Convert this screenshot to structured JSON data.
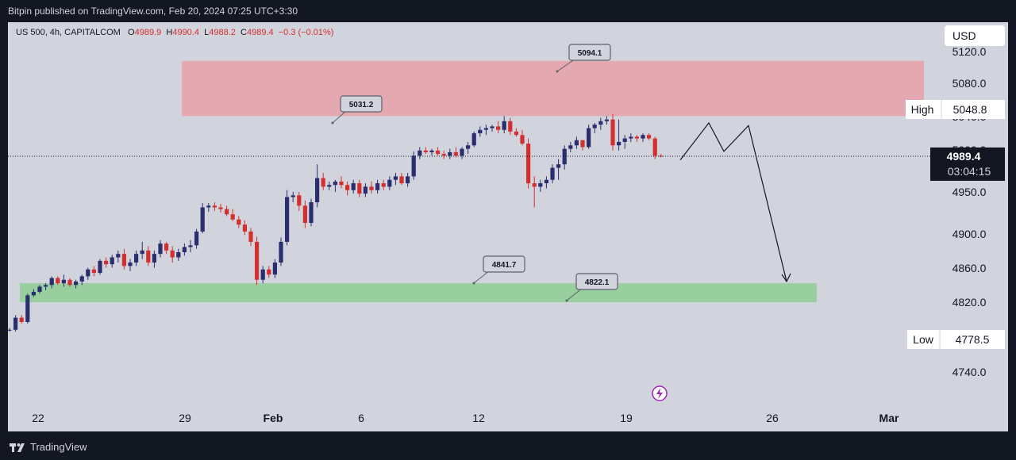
{
  "header": {
    "publisher_line": "Bitpin published on TradingView.com, Feb 20, 2024 07:25 UTC+3:30"
  },
  "legend": {
    "symbol": "US 500, 4h, CAPITALCOM",
    "open_label": "O",
    "open_value": "4989.9",
    "high_label": "H",
    "high_value": "4990.4",
    "low_label": "L",
    "low_value": "4988.2",
    "close_label": "C",
    "close_value": "4989.4",
    "change": "−0.3 (−0.01%)"
  },
  "currency_button": "USD",
  "footer": {
    "brand": "TradingView"
  },
  "colors": {
    "bull": "#2a2e6e",
    "bear": "#d32f2f",
    "resistance_zone": "#e8a0a8",
    "support_zone": "#8fcc94",
    "background": "#d1d4dc",
    "frame": "#131722"
  },
  "chart_data": {
    "type": "candlestick",
    "timeframe": "4h",
    "y_ticks": [
      "5120.0",
      "5080.0",
      "5040.0",
      "5000.0",
      "4950.0",
      "4900.0",
      "4860.0",
      "4820.0",
      "4740.0"
    ],
    "x_ticks": [
      "22",
      "29",
      "Feb",
      "6",
      "12",
      "19",
      "26",
      "Mar"
    ],
    "last_price": "4989.4",
    "countdown": "03:04:15",
    "high_tag": {
      "label": "High",
      "value": "5048.8"
    },
    "low_tag": {
      "label": "Low",
      "value": "4778.5"
    },
    "resistance_zone": [
      5036,
      5100
    ],
    "support_zone": [
      4820,
      4842
    ],
    "callouts": [
      "5094.1",
      "5031.2",
      "4841.7",
      "4822.1"
    ],
    "projection_path": [
      4985,
      5028,
      4995,
      5025,
      4844
    ],
    "ohlc": [
      [
        4787,
        4790,
        4786,
        4788
      ],
      [
        4788,
        4805,
        4786,
        4802
      ],
      [
        4802,
        4805,
        4795,
        4797
      ],
      [
        4797,
        4830,
        4795,
        4828
      ],
      [
        4828,
        4835,
        4826,
        4832
      ],
      [
        4832,
        4840,
        4830,
        4838
      ],
      [
        4838,
        4842,
        4834,
        4840
      ],
      [
        4840,
        4850,
        4836,
        4848
      ],
      [
        4848,
        4850,
        4840,
        4842
      ],
      [
        4842,
        4852,
        4838,
        4846
      ],
      [
        4846,
        4848,
        4838,
        4840
      ],
      [
        4840,
        4846,
        4836,
        4844
      ],
      [
        4844,
        4852,
        4840,
        4850
      ],
      [
        4850,
        4860,
        4846,
        4858
      ],
      [
        4858,
        4862,
        4850,
        4854
      ],
      [
        4854,
        4870,
        4852,
        4868
      ],
      [
        4868,
        4872,
        4860,
        4864
      ],
      [
        4864,
        4875,
        4860,
        4872
      ],
      [
        4872,
        4880,
        4866,
        4876
      ],
      [
        4876,
        4882,
        4858,
        4862
      ],
      [
        4862,
        4870,
        4856,
        4866
      ],
      [
        4866,
        4880,
        4862,
        4876
      ],
      [
        4876,
        4890,
        4870,
        4880
      ],
      [
        4880,
        4885,
        4862,
        4866
      ],
      [
        4866,
        4880,
        4860,
        4876
      ],
      [
        4876,
        4892,
        4872,
        4888
      ],
      [
        4888,
        4890,
        4876,
        4880
      ],
      [
        4880,
        4885,
        4866,
        4872
      ],
      [
        4872,
        4882,
        4868,
        4878
      ],
      [
        4878,
        4888,
        4874,
        4884
      ],
      [
        4884,
        4892,
        4878,
        4886
      ],
      [
        4886,
        4905,
        4882,
        4902
      ],
      [
        4902,
        4935,
        4900,
        4930
      ],
      [
        4930,
        4935,
        4925,
        4932
      ],
      [
        4932,
        4936,
        4926,
        4930
      ],
      [
        4930,
        4934,
        4924,
        4928
      ],
      [
        4928,
        4932,
        4920,
        4922
      ],
      [
        4922,
        4928,
        4914,
        4916
      ],
      [
        4916,
        4920,
        4906,
        4910
      ],
      [
        4910,
        4915,
        4898,
        4902
      ],
      [
        4902,
        4906,
        4885,
        4890
      ],
      [
        4890,
        4896,
        4840,
        4846
      ],
      [
        4846,
        4862,
        4842,
        4858
      ],
      [
        4858,
        4862,
        4848,
        4852
      ],
      [
        4852,
        4870,
        4848,
        4866
      ],
      [
        4866,
        4895,
        4862,
        4890
      ],
      [
        4890,
        4950,
        4886,
        4942
      ],
      [
        4942,
        4948,
        4936,
        4944
      ],
      [
        4944,
        4948,
        4926,
        4932
      ],
      [
        4932,
        4938,
        4906,
        4912
      ],
      [
        4912,
        4940,
        4908,
        4936
      ],
      [
        4936,
        4980,
        4930,
        4964
      ],
      [
        4964,
        4970,
        4950,
        4954
      ],
      [
        4954,
        4960,
        4950,
        4956
      ],
      [
        4956,
        4962,
        4948,
        4960
      ],
      [
        4960,
        4966,
        4952,
        4956
      ],
      [
        4956,
        4960,
        4944,
        4950
      ],
      [
        4950,
        4962,
        4946,
        4958
      ],
      [
        4958,
        4962,
        4942,
        4946
      ],
      [
        4946,
        4958,
        4942,
        4954
      ],
      [
        4954,
        4960,
        4946,
        4950
      ],
      [
        4950,
        4962,
        4946,
        4958
      ],
      [
        4958,
        4962,
        4950,
        4954
      ],
      [
        4954,
        4966,
        4950,
        4962
      ],
      [
        4962,
        4970,
        4956,
        4966
      ],
      [
        4966,
        4970,
        4956,
        4958
      ],
      [
        4958,
        4970,
        4954,
        4966
      ],
      [
        4966,
        4995,
        4962,
        4990
      ],
      [
        4990,
        5000,
        4986,
        4996
      ],
      [
        4996,
        5000,
        4992,
        4994
      ],
      [
        4994,
        4998,
        4990,
        4996
      ],
      [
        4996,
        5000,
        4990,
        4992
      ],
      [
        4992,
        4996,
        4986,
        4990
      ],
      [
        4990,
        4998,
        4986,
        4994
      ],
      [
        4994,
        5000,
        4988,
        4990
      ],
      [
        4990,
        5000,
        4986,
        4998
      ],
      [
        4998,
        5006,
        4992,
        5002
      ],
      [
        5002,
        5018,
        5000,
        5016
      ],
      [
        5016,
        5024,
        5012,
        5020
      ],
      [
        5020,
        5026,
        5014,
        5022
      ],
      [
        5022,
        5026,
        5018,
        5024
      ],
      [
        5024,
        5030,
        5016,
        5020
      ],
      [
        5020,
        5036,
        5016,
        5030
      ],
      [
        5030,
        5034,
        5014,
        5018
      ],
      [
        5018,
        5022,
        5012,
        5014
      ],
      [
        5014,
        5020,
        5002,
        5004
      ],
      [
        5004,
        5010,
        4952,
        4958
      ],
      [
        4958,
        4966,
        4930,
        4954
      ],
      [
        4954,
        4962,
        4948,
        4958
      ],
      [
        4958,
        4966,
        4952,
        4962
      ],
      [
        4962,
        4980,
        4958,
        4976
      ],
      [
        4976,
        4986,
        4962,
        4980
      ],
      [
        4980,
        5002,
        4974,
        4998
      ],
      [
        4998,
        5006,
        4994,
        5002
      ],
      [
        5002,
        5012,
        4998,
        5008
      ],
      [
        5008,
        5008,
        4996,
        5000
      ],
      [
        5000,
        5026,
        4998,
        5022
      ],
      [
        5022,
        5028,
        5016,
        5026
      ],
      [
        5026,
        5034,
        5020,
        5030
      ],
      [
        5030,
        5036,
        5026,
        5032
      ],
      [
        5032,
        5038,
        4996,
        5002
      ],
      [
        5002,
        5032,
        4996,
        5006
      ],
      [
        5006,
        5014,
        4998,
        5010
      ],
      [
        5010,
        5016,
        5006,
        5012
      ],
      [
        5012,
        5014,
        5006,
        5010
      ],
      [
        5010,
        5016,
        5006,
        5014
      ],
      [
        5014,
        5016,
        5008,
        5010
      ],
      [
        5010,
        5012,
        4986,
        4990
      ],
      [
        4990,
        4992,
        4988,
        4989.4
      ]
    ]
  }
}
